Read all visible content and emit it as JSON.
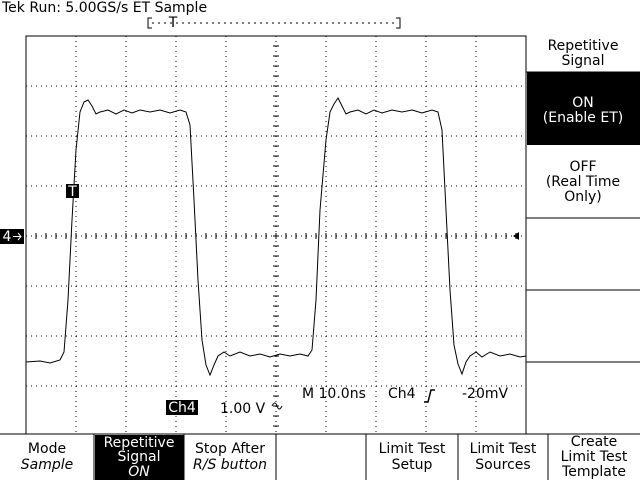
{
  "header": {
    "status": "Tek Run: 5.00GS/s ET Sample",
    "trigger_position": "T"
  },
  "display": {
    "channel_marker": "4",
    "trigger_marker": "T",
    "readout": {
      "timebase": "M 10.0ns",
      "trigger_source": "Ch4",
      "trigger_level": "-20mV",
      "channel": "Ch4",
      "scale": "1.00 V"
    }
  },
  "side_menu": {
    "title": [
      "Repetitive",
      "Signal"
    ],
    "options": [
      {
        "lines": [
          "ON",
          "(Enable ET)"
        ]
      },
      {
        "lines": [
          "OFF",
          "(Real Time",
          "Only)"
        ]
      }
    ]
  },
  "bottom_menu": [
    {
      "lines": [
        "Mode",
        "Sample"
      ]
    },
    {
      "lines": [
        "Repetitive",
        "Signal",
        "ON"
      ]
    },
    {
      "lines": [
        "Stop After",
        "R/S button"
      ]
    },
    {
      "lines": [
        "Limit Test",
        "Setup"
      ]
    },
    {
      "lines": [
        "Limit Test",
        "Sources"
      ]
    },
    {
      "lines": [
        "Create",
        "Limit Test",
        "Template"
      ]
    }
  ]
}
